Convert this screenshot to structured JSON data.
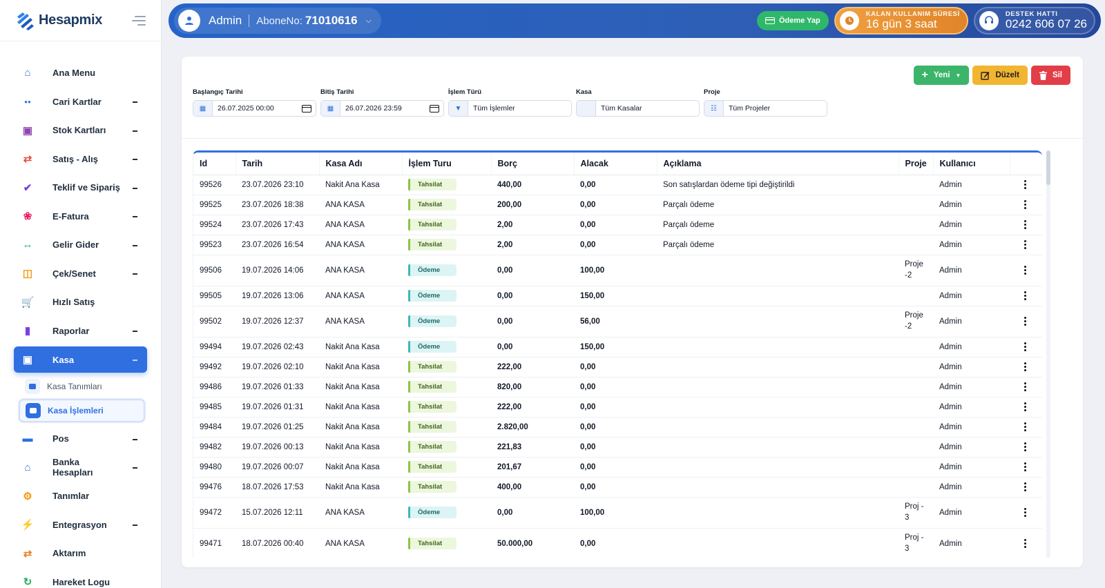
{
  "brand": {
    "name": "Hesapmix"
  },
  "sidebar": {
    "items": [
      {
        "label": "Ana Menu",
        "icon": "home-icon",
        "color": "#2f6fe0",
        "expandable": false
      },
      {
        "label": "Cari Kartlar",
        "icon": "users-icon",
        "color": "#2f6fe0",
        "expandable": true
      },
      {
        "label": "Stok Kartları",
        "icon": "boxes-icon",
        "color": "#8e44ad",
        "expandable": true
      },
      {
        "label": "Satış - Alış",
        "icon": "exchange-icon",
        "color": "#e74c3c",
        "expandable": true
      },
      {
        "label": "Teklif ve Sipariş",
        "icon": "clipboard-icon",
        "color": "#7b3fe4",
        "expandable": true
      },
      {
        "label": "E-Fatura",
        "icon": "leaf-icon",
        "color": "#e91e63",
        "expandable": true
      },
      {
        "label": "Gelir Gider",
        "icon": "arrows-icon",
        "color": "#27ae60",
        "expandable": true
      },
      {
        "label": "Çek/Senet",
        "icon": "money-icon",
        "color": "#f39c12",
        "expandable": true
      },
      {
        "label": "Hızlı Satış",
        "icon": "cart-icon",
        "color": "#27ae60",
        "expandable": false
      },
      {
        "label": "Raporlar",
        "icon": "chart-icon",
        "color": "#7b3fe4",
        "expandable": true
      },
      {
        "label": "Kasa",
        "icon": "briefcase-icon",
        "color": "#ffffff",
        "expandable": true,
        "active": true
      }
    ],
    "kasa_sub": [
      {
        "label": "Kasa Tanımları",
        "icon": "wallet-icon"
      },
      {
        "label": "Kasa İşlemleri",
        "icon": "coins-icon",
        "active": true
      }
    ],
    "items_after": [
      {
        "label": "Pos",
        "icon": "card-icon",
        "color": "#2f6fe0",
        "expandable": true
      },
      {
        "label": "Banka Hesapları",
        "icon": "bank-icon",
        "color": "#2f6fe0",
        "expandable": true
      },
      {
        "label": "Tanımlar",
        "icon": "gears-icon",
        "color": "#f39c12",
        "expandable": false
      },
      {
        "label": "Entegrasyon",
        "icon": "plug-icon",
        "color": "#27ae60",
        "expandable": true
      },
      {
        "label": "Aktarım",
        "icon": "transfer-icon",
        "color": "#e67e22",
        "expandable": false
      },
      {
        "label": "Hareket Logu",
        "icon": "history-icon",
        "color": "#27ae60",
        "expandable": false
      }
    ]
  },
  "topbar": {
    "user": "Admin",
    "abone_label": "AboneNo:",
    "abone_no": "71010616",
    "pay_label": "Ödeme Yap",
    "remaining_label": "KALAN KULLANIM SÜRESİ",
    "remaining_value": "16 gün 3 saat",
    "support_label": "DESTEK HATTI",
    "support_value": "0242 606 07 26"
  },
  "actions": {
    "new": "Yeni",
    "edit": "Düzelt",
    "delete": "Sil"
  },
  "filters": {
    "start": {
      "label": "Başlangıç Tarihi",
      "value": "26.07.2025 00:00"
    },
    "end": {
      "label": "Bitiş Tarihi",
      "value": "26.07.2026 23:59"
    },
    "type": {
      "label": "İşlem Türü",
      "value": "Tüm İşlemler"
    },
    "kasa": {
      "label": "Kasa",
      "value": "Tüm Kasalar"
    },
    "proje": {
      "label": "Proje",
      "value": "Tüm Projeler"
    }
  },
  "table": {
    "headers": [
      "Id",
      "Tarih",
      "Kasa Adı",
      "İşlem Turu",
      "Borç",
      "Alacak",
      "Açıklama",
      "Proje",
      "Kullanıcı",
      ""
    ],
    "rows": [
      {
        "id": "99526",
        "tarih": "23.07.2026 23:10",
        "kasa": "Nakit Ana Kasa",
        "tur": "Tahsilat",
        "borc": "440,00",
        "alacak": "0,00",
        "aciklama": "Son satışlardan ödeme tipi değiştirildi",
        "proje": "",
        "kullanici": "Admin"
      },
      {
        "id": "99525",
        "tarih": "23.07.2026 18:38",
        "kasa": "ANA KASA",
        "tur": "Tahsilat",
        "borc": "200,00",
        "alacak": "0,00",
        "aciklama": "Parçalı ödeme",
        "proje": "",
        "kullanici": "Admin"
      },
      {
        "id": "99524",
        "tarih": "23.07.2026 17:43",
        "kasa": "ANA KASA",
        "tur": "Tahsilat",
        "borc": "2,00",
        "alacak": "0,00",
        "aciklama": "Parçalı ödeme",
        "proje": "",
        "kullanici": "Admin"
      },
      {
        "id": "99523",
        "tarih": "23.07.2026 16:54",
        "kasa": "ANA KASA",
        "tur": "Tahsilat",
        "borc": "2,00",
        "alacak": "0,00",
        "aciklama": "Parçalı ödeme",
        "proje": "",
        "kullanici": "Admin"
      },
      {
        "id": "99506",
        "tarih": "19.07.2026 14:06",
        "kasa": "ANA KASA",
        "tur": "Ödeme",
        "borc": "0,00",
        "alacak": "100,00",
        "aciklama": "",
        "proje": "Proje -2",
        "kullanici": "Admin"
      },
      {
        "id": "99505",
        "tarih": "19.07.2026 13:06",
        "kasa": "ANA KASA",
        "tur": "Ödeme",
        "borc": "0,00",
        "alacak": "150,00",
        "aciklama": "",
        "proje": "",
        "kullanici": "Admin"
      },
      {
        "id": "99502",
        "tarih": "19.07.2026 12:37",
        "kasa": "ANA KASA",
        "tur": "Ödeme",
        "borc": "0,00",
        "alacak": "56,00",
        "aciklama": "",
        "proje": "Proje -2",
        "kullanici": "Admin"
      },
      {
        "id": "99494",
        "tarih": "19.07.2026 02:43",
        "kasa": "Nakit Ana Kasa",
        "tur": "Ödeme",
        "borc": "0,00",
        "alacak": "150,00",
        "aciklama": "",
        "proje": "",
        "kullanici": "Admin"
      },
      {
        "id": "99492",
        "tarih": "19.07.2026 02:10",
        "kasa": "Nakit Ana Kasa",
        "tur": "Tahsilat",
        "borc": "222,00",
        "alacak": "0,00",
        "aciklama": "",
        "proje": "",
        "kullanici": "Admin"
      },
      {
        "id": "99486",
        "tarih": "19.07.2026 01:33",
        "kasa": "Nakit Ana Kasa",
        "tur": "Tahsilat",
        "borc": "820,00",
        "alacak": "0,00",
        "aciklama": "",
        "proje": "",
        "kullanici": "Admin"
      },
      {
        "id": "99485",
        "tarih": "19.07.2026 01:31",
        "kasa": "Nakit Ana Kasa",
        "tur": "Tahsilat",
        "borc": "222,00",
        "alacak": "0,00",
        "aciklama": "",
        "proje": "",
        "kullanici": "Admin"
      },
      {
        "id": "99484",
        "tarih": "19.07.2026 01:25",
        "kasa": "Nakit Ana Kasa",
        "tur": "Tahsilat",
        "borc": "2.820,00",
        "alacak": "0,00",
        "aciklama": "",
        "proje": "",
        "kullanici": "Admin"
      },
      {
        "id": "99482",
        "tarih": "19.07.2026 00:13",
        "kasa": "Nakit Ana Kasa",
        "tur": "Tahsilat",
        "borc": "221,83",
        "alacak": "0,00",
        "aciklama": "",
        "proje": "",
        "kullanici": "Admin"
      },
      {
        "id": "99480",
        "tarih": "19.07.2026 00:07",
        "kasa": "Nakit Ana Kasa",
        "tur": "Tahsilat",
        "borc": "201,67",
        "alacak": "0,00",
        "aciklama": "",
        "proje": "",
        "kullanici": "Admin"
      },
      {
        "id": "99476",
        "tarih": "18.07.2026 17:53",
        "kasa": "Nakit Ana Kasa",
        "tur": "Tahsilat",
        "borc": "400,00",
        "alacak": "0,00",
        "aciklama": "",
        "proje": "",
        "kullanici": "Admin"
      },
      {
        "id": "99472",
        "tarih": "15.07.2026 12:11",
        "kasa": "ANA KASA",
        "tur": "Ödeme",
        "borc": "0,00",
        "alacak": "100,00",
        "aciklama": "",
        "proje": "Proj - 3",
        "kullanici": "Admin"
      },
      {
        "id": "99471",
        "tarih": "18.07.2026 00:40",
        "kasa": "ANA KASA",
        "tur": "Tahsilat",
        "borc": "50.000,00",
        "alacak": "0,00",
        "aciklama": "",
        "proje": "Proj - 3",
        "kullanici": "Admin"
      }
    ]
  }
}
